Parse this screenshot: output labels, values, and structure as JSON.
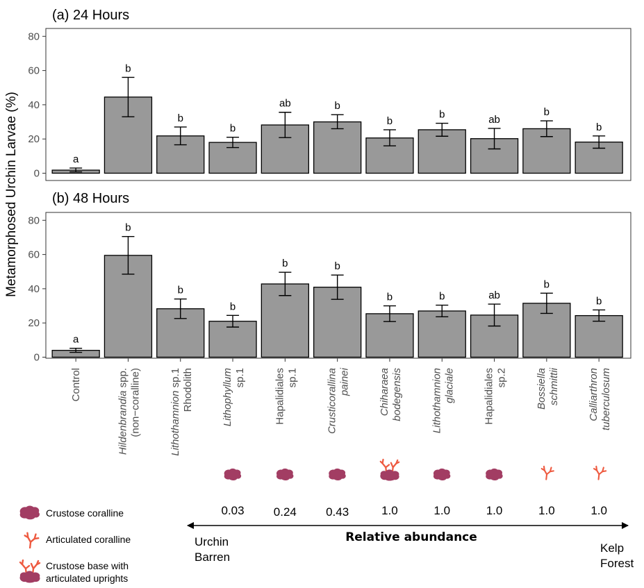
{
  "chart_data": {
    "type": "bar",
    "ylabel": "Metamorphosed Urchin Larvae (%)",
    "ylim": [
      0,
      85
    ],
    "yticks": [
      0,
      20,
      40,
      60,
      80
    ],
    "categories": [
      {
        "line1": "Control",
        "line2": "",
        "italic1": false,
        "italic2": false,
        "l1_pre": "",
        "l1_it": "",
        "l1_post": "Control"
      },
      {
        "l1_it": "Hildenbrandia",
        "l1_post": " spp.",
        "line2": "(non−coralline)",
        "italic2": false
      },
      {
        "l1_it": "Lithothamnion",
        "l1_post": " sp.1",
        "line2": "Rhodolith",
        "italic2": false
      },
      {
        "l1_it": "Lithophyllum",
        "l1_post": "",
        "line2": "sp.1",
        "italic2": false
      },
      {
        "l1_it": "",
        "l1_post": "Hapalidiales",
        "line2": "sp.1",
        "italic2": false
      },
      {
        "l1_it": "Crusticorallina",
        "l1_post": "",
        "line2": "painei",
        "italic2": true
      },
      {
        "l1_it": "Chiharaea",
        "l1_post": "",
        "line2": "bodegensis",
        "italic2": true
      },
      {
        "l1_it": "Lithothamnion",
        "l1_post": "",
        "line2": "glaciale",
        "italic2": true
      },
      {
        "l1_it": "",
        "l1_post": "Hapalidiales",
        "line2": "sp.2",
        "italic2": false
      },
      {
        "l1_it": "Bossiella",
        "l1_post": "",
        "line2": "schmittii",
        "italic2": true
      },
      {
        "l1_it": "Calliarthron",
        "l1_post": "",
        "line2": "tuberculosum",
        "italic2": true
      }
    ],
    "panels": [
      {
        "title": "(a) 24 Hours",
        "values": [
          1.8,
          44.5,
          21.8,
          18.0,
          28.2,
          30.0,
          20.6,
          25.4,
          20.2,
          26.0,
          18.2
        ],
        "err_low": [
          0.8,
          33.0,
          16.6,
          15.0,
          20.8,
          26.0,
          16.0,
          21.6,
          14.2,
          21.4,
          14.6
        ],
        "err_high": [
          3.0,
          56.0,
          27.0,
          21.0,
          35.6,
          34.2,
          25.4,
          29.2,
          26.2,
          30.6,
          21.8
        ],
        "letters": [
          "a",
          "b",
          "b",
          "b",
          "ab",
          "b",
          "b",
          "b",
          "ab",
          "b",
          "b"
        ]
      },
      {
        "title": "(b) 48 Hours",
        "values": [
          4.0,
          59.5,
          28.3,
          21.0,
          42.8,
          40.9,
          25.4,
          27.0,
          24.6,
          31.5,
          24.3
        ],
        "err_low": [
          2.8,
          48.5,
          22.6,
          17.6,
          36.0,
          33.8,
          20.8,
          23.6,
          18.2,
          25.6,
          21.0
        ],
        "err_high": [
          5.2,
          70.5,
          34.0,
          24.4,
          49.6,
          48.0,
          30.0,
          30.4,
          31.0,
          37.4,
          27.6
        ],
        "letters": [
          "a",
          "b",
          "b",
          "b",
          "b",
          "b",
          "b",
          "b",
          "ab",
          "b",
          "b"
        ]
      }
    ],
    "bar_color": "#999999",
    "morphology": [
      "",
      "",
      "",
      "crustose",
      "crustose",
      "crustose",
      "crustose-articulated",
      "crustose",
      "crustose",
      "articulated",
      "articulated"
    ],
    "abundance": [
      "",
      "",
      "",
      "0.03",
      "0.24",
      "0.43",
      "1.0",
      "1.0",
      "1.0",
      "1.0",
      "1.0"
    ]
  },
  "abundance_axis": {
    "title": "Relative abundance",
    "left_line1": "Urchin",
    "left_line2": "Barren",
    "right_line1": "Kelp",
    "right_line2": "Forest"
  },
  "legend": {
    "crustose": "Crustose coralline",
    "articulated": "Articulated coralline",
    "mixed_line1": "Crustose base with",
    "mixed_line2": "articulated uprights"
  },
  "colors": {
    "crustose": "#a23d63",
    "articulated": "#ee5a40"
  }
}
